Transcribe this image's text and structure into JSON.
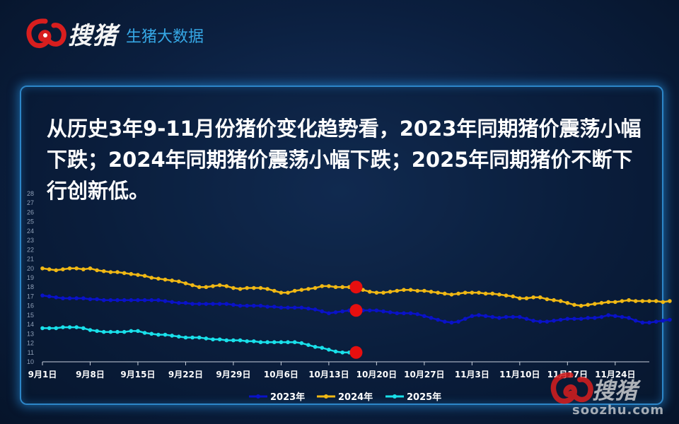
{
  "header": {
    "logo_text": "搜猪",
    "subtitle": "生猪大数据"
  },
  "headline": "从历史3年9-11月份猪价变化趋势看，2023年同期猪价震荡小幅下跌；2024年同期猪价震荡小幅下跌；2025年同期猪价不断下行创新低。",
  "watermark": {
    "logo_text": "搜猪",
    "url": "soozhu.com"
  },
  "colors": {
    "series_2023": "#0a12c8",
    "series_2024": "#f0b814",
    "series_2025": "#19e0ea",
    "marker": "#e60f0f",
    "panel_border": "#2d86c8"
  },
  "chart_data": {
    "type": "line",
    "xlabel": "",
    "ylabel": "",
    "ylim": [
      10,
      28
    ],
    "yticks": [
      10,
      11,
      12,
      13,
      14,
      15,
      16,
      17,
      18,
      19,
      20,
      21,
      22,
      23,
      24,
      25,
      26,
      27,
      28
    ],
    "x_range": [
      0,
      89
    ],
    "xtick_labels": [
      {
        "label": "9月1日",
        "day": 0
      },
      {
        "label": "9月8日",
        "day": 7
      },
      {
        "label": "9月15日",
        "day": 14
      },
      {
        "label": "9月22日",
        "day": 21
      },
      {
        "label": "9月29日",
        "day": 28
      },
      {
        "label": "10月6日",
        "day": 35
      },
      {
        "label": "10月13日",
        "day": 42
      },
      {
        "label": "10月20日",
        "day": 49
      },
      {
        "label": "10月27日",
        "day": 56
      },
      {
        "label": "11月3日",
        "day": 63
      },
      {
        "label": "11月10日",
        "day": 70
      },
      {
        "label": "11月17日",
        "day": 77
      },
      {
        "label": "11月24日",
        "day": 84
      }
    ],
    "legend_position": "bottom",
    "series": [
      {
        "name": "2023年",
        "key": "series_2023",
        "values": [
          17.1,
          17.0,
          16.9,
          16.8,
          16.8,
          16.8,
          16.8,
          16.7,
          16.7,
          16.6,
          16.6,
          16.6,
          16.6,
          16.6,
          16.6,
          16.6,
          16.6,
          16.6,
          16.5,
          16.4,
          16.3,
          16.3,
          16.2,
          16.2,
          16.2,
          16.2,
          16.2,
          16.2,
          16.1,
          16.0,
          16.0,
          16.0,
          16.0,
          15.9,
          15.9,
          15.8,
          15.8,
          15.8,
          15.8,
          15.7,
          15.6,
          15.4,
          15.2,
          15.3,
          15.4,
          15.5,
          15.6,
          15.5,
          15.5,
          15.5,
          15.4,
          15.3,
          15.2,
          15.2,
          15.2,
          15.1,
          14.9,
          14.7,
          14.5,
          14.3,
          14.2,
          14.3,
          14.6,
          14.9,
          15.0,
          14.9,
          14.8,
          14.7,
          14.8,
          14.8,
          14.8,
          14.6,
          14.4,
          14.3,
          14.3,
          14.4,
          14.5,
          14.6,
          14.6,
          14.6,
          14.7,
          14.7,
          14.8,
          15.0,
          14.9,
          14.8,
          14.7,
          14.4,
          14.2,
          14.2,
          14.3,
          14.4,
          14.5
        ]
      },
      {
        "name": "2024年",
        "key": "series_2024",
        "values": [
          20.0,
          19.9,
          19.8,
          19.9,
          20.0,
          20.0,
          19.9,
          20.0,
          19.8,
          19.7,
          19.6,
          19.6,
          19.5,
          19.4,
          19.3,
          19.2,
          19.0,
          18.9,
          18.8,
          18.7,
          18.6,
          18.4,
          18.2,
          18.0,
          18.0,
          18.1,
          18.2,
          18.1,
          17.9,
          17.8,
          17.9,
          17.9,
          17.9,
          17.8,
          17.6,
          17.4,
          17.4,
          17.6,
          17.7,
          17.8,
          17.9,
          18.1,
          18.1,
          18.0,
          18.0,
          18.0,
          17.9,
          17.7,
          17.5,
          17.4,
          17.4,
          17.5,
          17.6,
          17.7,
          17.7,
          17.6,
          17.6,
          17.5,
          17.4,
          17.3,
          17.2,
          17.3,
          17.4,
          17.4,
          17.4,
          17.3,
          17.3,
          17.2,
          17.1,
          17.0,
          16.8,
          16.8,
          16.9,
          16.9,
          16.7,
          16.6,
          16.5,
          16.3,
          16.1,
          16.0,
          16.1,
          16.2,
          16.3,
          16.4,
          16.4,
          16.5,
          16.6,
          16.5,
          16.5,
          16.5,
          16.5,
          16.4,
          16.5
        ]
      },
      {
        "name": "2025年",
        "key": "series_2025",
        "values": [
          13.6,
          13.6,
          13.6,
          13.7,
          13.7,
          13.7,
          13.6,
          13.4,
          13.3,
          13.2,
          13.2,
          13.2,
          13.2,
          13.3,
          13.3,
          13.1,
          13.0,
          12.9,
          12.9,
          12.8,
          12.7,
          12.6,
          12.6,
          12.6,
          12.5,
          12.4,
          12.4,
          12.3,
          12.3,
          12.3,
          12.2,
          12.2,
          12.1,
          12.1,
          12.1,
          12.1,
          12.1,
          12.1,
          12.0,
          11.8,
          11.6,
          11.5,
          11.3,
          11.1,
          11.0,
          11.0
        ]
      }
    ],
    "highlights": [
      {
        "series": "2024年",
        "day": 46,
        "value": 18.0
      },
      {
        "series": "2023年",
        "day": 46,
        "value": 15.5
      },
      {
        "series": "2025年",
        "day": 46,
        "value": 11.0
      }
    ]
  }
}
